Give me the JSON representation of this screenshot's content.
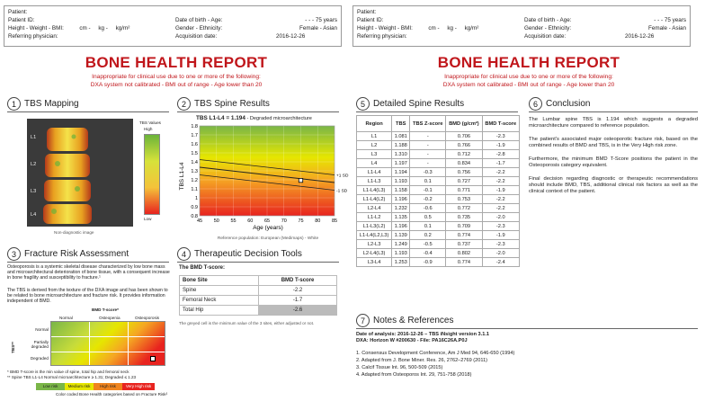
{
  "header": {
    "patient_label": "Patient:",
    "patient_id_label": "Patient ID:",
    "hw_label": "Height - Weight - BMI:",
    "hw_units": [
      "cm -",
      "kg -",
      "kg/m²"
    ],
    "ref_label": "Referring physician:",
    "dob_label": "Date of birth - Age:",
    "dob_value": "-     -     - 75 years",
    "gender_label": "Gender - Ethnicity:",
    "gender_value": "Female - Asian",
    "acq_label": "Acquisition date:",
    "acq_value": "2016-12-26"
  },
  "report": {
    "title": "BONE HEALTH REPORT",
    "warning_line1": "Inappropriate for clinical use due to one or more of the following:",
    "warning_line2": "DXA system not calibrated - BMI out of range - Age lower than 20"
  },
  "sections": {
    "s1": {
      "num": "1",
      "title": "TBS Mapping"
    },
    "s2": {
      "num": "2",
      "title": "TBS Spine Results"
    },
    "s3": {
      "num": "3",
      "title": "Fracture Risk Assessment"
    },
    "s4": {
      "num": "4",
      "title": "Therapeutic Decision Tools"
    },
    "s5": {
      "num": "5",
      "title": "Detailed Spine Results"
    },
    "s6": {
      "num": "6",
      "title": "Conclusion"
    },
    "s7": {
      "num": "7",
      "title": "Notes & References"
    }
  },
  "tbs_mapping": {
    "legend_title_1": "TBS Values",
    "legend_high": "High",
    "legend_low": "Low",
    "caption": "Non-diagnostic image",
    "vertebra_labels": [
      "L1",
      "L2",
      "L3",
      "L4"
    ]
  },
  "spine_results": {
    "headline_label": "TBS L1-L4 = 1.194",
    "headline_note": " - Degraded microarchitecture",
    "ylabel": "TBS L1-L4",
    "xlabel": "Age (years)",
    "footnote": "Reference population: European (Medimaps) - White",
    "sd_plus": "+1 SD",
    "sd_minus": "-1 SD"
  },
  "chart_data": {
    "type": "line",
    "x_ticks": [
      45,
      50,
      55,
      60,
      65,
      70,
      75,
      80,
      85
    ],
    "y_ticks": [
      0.8,
      0.9,
      1.0,
      1.1,
      1.2,
      1.3,
      1.4,
      1.5,
      1.6,
      1.7,
      1.8
    ],
    "xlim": [
      45,
      85
    ],
    "ylim": [
      0.8,
      1.8
    ],
    "xlabel": "Age (years)",
    "ylabel": "TBS L1-L4",
    "series": [
      {
        "x": [
          45,
          85
        ],
        "y": [
          1.425,
          1.255
        ]
      },
      {
        "x": [
          45,
          85
        ],
        "y": [
          1.34,
          1.17
        ]
      },
      {
        "x": [
          45,
          85
        ],
        "y": [
          1.255,
          1.085
        ]
      }
    ],
    "point": {
      "x": 75,
      "y": 1.194
    }
  },
  "fracture": {
    "para1": "Osteoporosis is a systemic skeletal disease characterized by low bone mass and microarchitectural deterioration of bone tissue, with a consequent increase in bone fragility and susceptibility to fracture.¹",
    "para2": "The TBS is derived from the texture of the DXA image and has been shown to be related to bone microarchitecture and fracture risk. It provides information independent of BMD.",
    "matrix_top": "BMD T-score*",
    "col_labels": [
      "Normal",
      "Osteopenia",
      "Osteoporosis"
    ],
    "row_labels": [
      "Normal",
      "Partially degraded",
      "Degraded"
    ],
    "tbs_axis": "TBS**",
    "note1": "* BMD T-score is the min value of spine, total hip and femoral neck",
    "note2": "** Spine TBS L1-L4 Normal microarchitecture ≥ 1.31; Degraded ≤ 1.23",
    "risk_labels": [
      "Low risk",
      "Medium risk",
      "High risk",
      "Very High risk"
    ],
    "risk_colors": [
      "#7ab648",
      "#e6e600",
      "#f0841e",
      "#e8231f"
    ],
    "caption": "Color coded Bone Health categories based on Fracture Risk²"
  },
  "therapeutic": {
    "heading": "The BMD T-score:",
    "col1": "Bone Site",
    "col2": "BMD T-score",
    "rows": [
      {
        "site": "Spine",
        "score": "-2.2"
      },
      {
        "site": "Femoral Neck",
        "score": "-1.7"
      },
      {
        "site": "Total Hip",
        "score": "-2.6"
      }
    ],
    "note": "The greyed cell is the minimum value of the 3 sites, either adjusted or not."
  },
  "detailed": {
    "headers": [
      "Region",
      "TBS",
      "TBS Z-score",
      "BMD (g/cm²)",
      "BMD T-score"
    ],
    "rows": [
      [
        "L1",
        "1.081",
        "-",
        "0.706",
        "-2.3"
      ],
      [
        "L2",
        "1.188",
        "-",
        "0.766",
        "-1.9"
      ],
      [
        "L3",
        "1.310",
        "-",
        "0.712",
        "-2.8"
      ],
      [
        "L4",
        "1.197",
        "-",
        "0.834",
        "-1.7"
      ],
      [
        "L1-L4",
        "1.194",
        "-0.3",
        "0.756",
        "-2.2"
      ],
      [
        "L1-L3",
        "1.193",
        "0.1",
        "0.727",
        "-2.2"
      ],
      [
        "L1-L4(L3)",
        "1.158",
        "-0.1",
        "0.771",
        "-1.9"
      ],
      [
        "L1-L4(L2)",
        "1.196",
        "-0.2",
        "0.753",
        "-2.2"
      ],
      [
        "L2-L4",
        "1.232",
        "-0.6",
        "0.772",
        "-2.2"
      ],
      [
        "L1-L2",
        "1.135",
        "0.5",
        "0.735",
        "-2.0"
      ],
      [
        "L1-L3(L2)",
        "1.196",
        "0.1",
        "0.709",
        "-2.3"
      ],
      [
        "L1-L4(L2,L3)",
        "1.139",
        "0.2",
        "0.774",
        "-1.9"
      ],
      [
        "L2-L3",
        "1.249",
        "-0.5",
        "0.737",
        "-2.3"
      ],
      [
        "L2-L4(L3)",
        "1.193",
        "-0.4",
        "0.802",
        "-2.0"
      ],
      [
        "L3-L4",
        "1.253",
        "-0.9",
        "0.774",
        "-2.4"
      ]
    ]
  },
  "conclusion": {
    "p1": "The Lumbar spine TBS is 1.194 which suggests a degraded microarchitecture compared to reference population.",
    "p2": "The patient's associated major osteoporotic fracture risk, based on the combined results of BMD and TBS, is in the Very High risk zone.",
    "p3": "Furthermore, the minimum BMD T-Score positions the patient in the Osteoporosis category equivalent.",
    "p4": "Final decision regarding diagnostic or therapeutic recommendations should include BMD, TBS, additional clinical risk factors as well as the clinical context of the patient."
  },
  "notes": {
    "analysis": "Date of analysis: 2016-12-26 – TBS iNsight version 3.1.1",
    "dxa": "DXA: Horizon W #200630 - File: PA16C26A.P0J",
    "refs": [
      "1. Consensus Development Conference, Am J Med 94, 646-650 (1994)",
      "2. Adapted from J. Bone Miner. Res. 26, 2762–2769 (2011)",
      "3. Calcif Tissue Int. 96, 500-509 (2015)",
      "4. Adapted from Osteoporos Int. 29, 751-758 (2018)"
    ]
  }
}
